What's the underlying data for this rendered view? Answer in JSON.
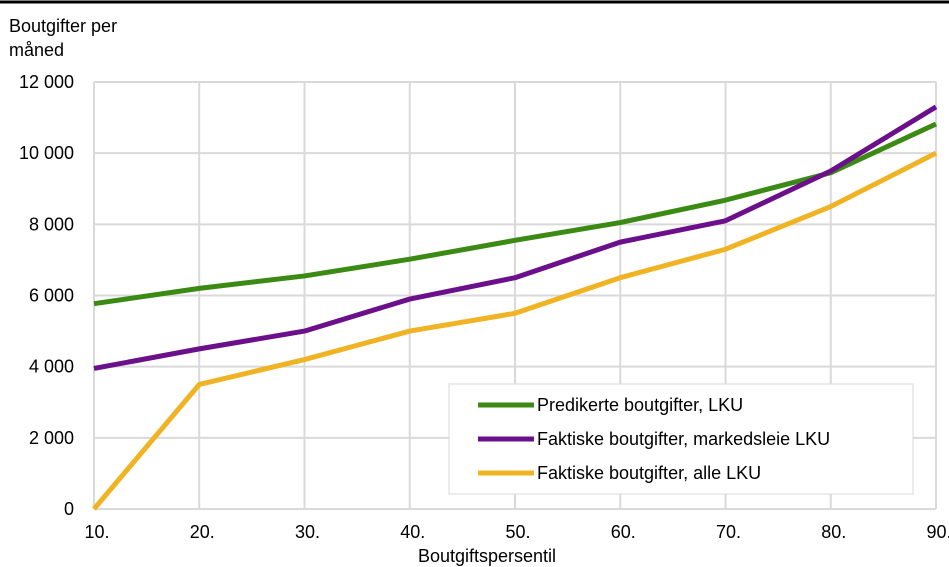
{
  "chart_data": {
    "type": "line",
    "ylabel": "Boutgifter per måned",
    "ylabel_lines": [
      "Boutgifter per",
      "måned"
    ],
    "xlabel": "Boutgiftspersentil",
    "categories": [
      "10.",
      "20.",
      "30.",
      "40.",
      "50.",
      "60.",
      "70.",
      "80.",
      "90."
    ],
    "y_ticks": [
      0,
      2000,
      4000,
      6000,
      8000,
      10000,
      12000
    ],
    "y_tick_labels": [
      "0",
      "2 000",
      "4 000",
      "6 000",
      "8 000",
      "10 000",
      "12 000"
    ],
    "ylim": [
      0,
      12000
    ],
    "grid": true,
    "legend_position": "bottom-right",
    "series": [
      {
        "name": "Predikerte boutgifter, LKU",
        "color": "#3a8a14",
        "values": [
          5770,
          6200,
          6550,
          7020,
          7550,
          8050,
          8680,
          9450,
          10820
        ]
      },
      {
        "name": "Faktiske boutgifter, markedsleie LKU",
        "color": "#6b0f8a",
        "values": [
          3950,
          4500,
          5000,
          5900,
          6500,
          7500,
          8100,
          9500,
          11300
        ]
      },
      {
        "name": "Faktiske boutgifter, alle LKU",
        "color": "#f0b323",
        "values": [
          0,
          3500,
          4200,
          5000,
          5500,
          6500,
          7300,
          8500,
          10000
        ]
      }
    ]
  }
}
